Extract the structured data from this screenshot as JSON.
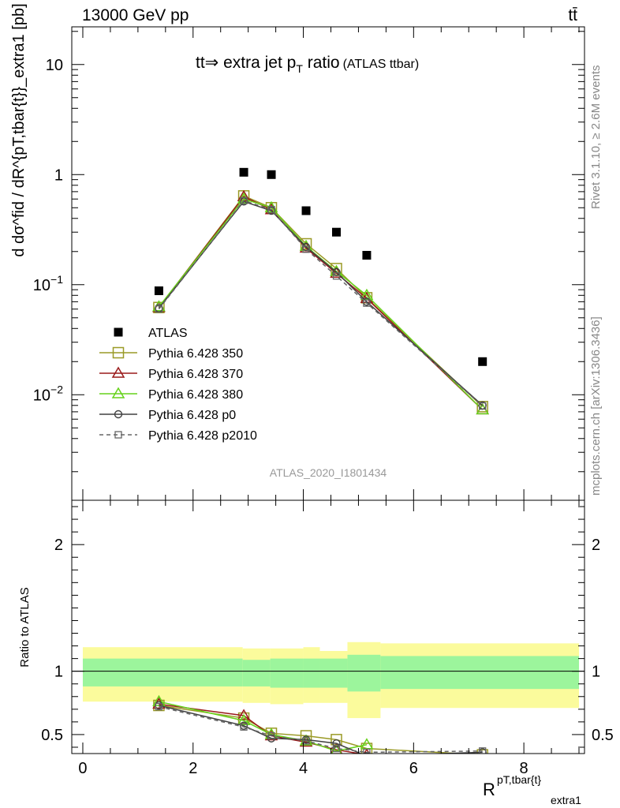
{
  "header": {
    "left": "13000 GeV pp",
    "right": "tt̄"
  },
  "side": {
    "rivet": "Rivet 3.1.10, ≥ 2.6M events",
    "mcplots": "mcplots.cern.ch [arXiv:1306.3436]"
  },
  "chart_data": [
    {
      "type": "scatter",
      "title": "tt⇒ extra jet p_T ratio",
      "title_main": "tt⇒ extra jet p",
      "title_sub": "T",
      "title_tail": " ratio",
      "title_note": "(ATLAS ttbar)",
      "ylabel": "d dσ^fid / dR^{pT,tbar{t}}_extra1 [pb]",
      "yscale": "log",
      "ylim": [
        0.0011,
        22
      ],
      "xlim": [
        -0.2,
        9.1
      ],
      "grid": false,
      "legend_position": "middle-left",
      "watermark": "ATLAS_2020_I1801434",
      "yticks": [
        {
          "value": 10,
          "base": "10",
          "exp": ""
        },
        {
          "value": 1,
          "base": "1",
          "exp": ""
        },
        {
          "value": 0.1,
          "base": "10",
          "exp": "−1"
        },
        {
          "value": 0.01,
          "base": "10",
          "exp": "−2"
        }
      ],
      "x": [
        1.38,
        2.92,
        3.42,
        4.05,
        4.6,
        5.15,
        7.25
      ],
      "series": [
        {
          "name": "ATLAS",
          "color": "#000000",
          "marker": "square-filled",
          "line": "none",
          "values": [
            0.088,
            1.05,
            1.0,
            0.47,
            0.3,
            0.185,
            0.02
          ]
        },
        {
          "name": "Pythia 6.428 350",
          "color": "#9a9a26",
          "marker": "square-open",
          "line": "solid",
          "values": [
            0.062,
            0.64,
            0.5,
            0.235,
            0.14,
            0.076,
            0.0078
          ]
        },
        {
          "name": "Pythia 6.428 370",
          "color": "#9a1a1a",
          "marker": "triangle-open",
          "line": "solid",
          "values": [
            0.062,
            0.63,
            0.48,
            0.215,
            0.127,
            0.075,
            0.0073
          ]
        },
        {
          "name": "Pythia 6.428 380",
          "color": "#66d21a",
          "marker": "triangle-open",
          "line": "solid",
          "values": [
            0.063,
            0.6,
            0.5,
            0.223,
            0.132,
            0.08,
            0.0073
          ]
        },
        {
          "name": "Pythia 6.428 p0",
          "color": "#404040",
          "marker": "circle-open",
          "line": "solid",
          "values": [
            0.061,
            0.57,
            0.47,
            0.22,
            0.13,
            0.07,
            0.008
          ]
        },
        {
          "name": "Pythia 6.428 p2010",
          "color": "#666666",
          "marker": "square-open-small",
          "line": "dashed",
          "values": [
            0.06,
            0.58,
            0.48,
            0.21,
            0.12,
            0.068,
            0.0079
          ]
        }
      ]
    },
    {
      "type": "scatter",
      "ylabel": "Ratio to ATLAS",
      "xlabel": "R^{pT,tbar{t}}_extra1",
      "xlabel_main": "R",
      "xlabel_sup": "pT,tbar{t}",
      "xlabel_sub": "extra1",
      "xlim": [
        -0.2,
        9.1
      ],
      "ylim": [
        0.35,
        2.35
      ],
      "xticks": [
        0,
        2,
        4,
        6,
        8
      ],
      "yticks": [
        0.5,
        1,
        2
      ],
      "grid": false,
      "reference_line": 1,
      "bands": {
        "edges": [
          0,
          2.9,
          3.4,
          4.0,
          4.3,
          4.8,
          5.4,
          9.0
        ],
        "inner_low": [
          0.88,
          0.88,
          0.87,
          0.87,
          0.87,
          0.84,
          0.86
        ],
        "inner_high": [
          1.1,
          1.09,
          1.1,
          1.1,
          1.1,
          1.13,
          1.12
        ],
        "outer_low": [
          0.76,
          0.75,
          0.74,
          0.75,
          0.75,
          0.63,
          0.71
        ],
        "outer_high": [
          1.19,
          1.18,
          1.18,
          1.19,
          1.16,
          1.23,
          1.22
        ],
        "inner_color": "#9cf59c",
        "outer_color": "#fbfb9c"
      },
      "x": [
        1.38,
        2.92,
        3.42,
        4.05,
        4.6,
        5.15,
        7.25
      ],
      "series": [
        {
          "name": "Pythia 6.428 350",
          "color": "#9a9a26",
          "marker": "square-open",
          "line": "solid",
          "values": [
            0.73,
            0.63,
            0.51,
            0.49,
            0.46,
            0.39,
            0.34
          ]
        },
        {
          "name": "Pythia 6.428 370",
          "color": "#9a1a1a",
          "marker": "triangle-open",
          "line": "solid",
          "values": [
            0.74,
            0.65,
            0.49,
            0.44,
            0.38,
            0.34,
            null
          ]
        },
        {
          "name": "Pythia 6.428 380",
          "color": "#66d21a",
          "marker": "triangle-open",
          "line": "solid",
          "values": [
            0.76,
            0.61,
            0.5,
            0.45,
            0.37,
            0.42,
            null
          ]
        },
        {
          "name": "Pythia 6.428 p0",
          "color": "#404040",
          "marker": "circle-open",
          "line": "solid",
          "values": [
            0.73,
            0.57,
            0.47,
            0.46,
            0.43,
            0.33,
            0.36
          ]
        },
        {
          "name": "Pythia 6.428 p2010",
          "color": "#666666",
          "marker": "square-open-small",
          "line": "dashed",
          "values": [
            0.72,
            0.56,
            0.49,
            0.45,
            0.39,
            0.36,
            0.37
          ]
        }
      ]
    }
  ]
}
